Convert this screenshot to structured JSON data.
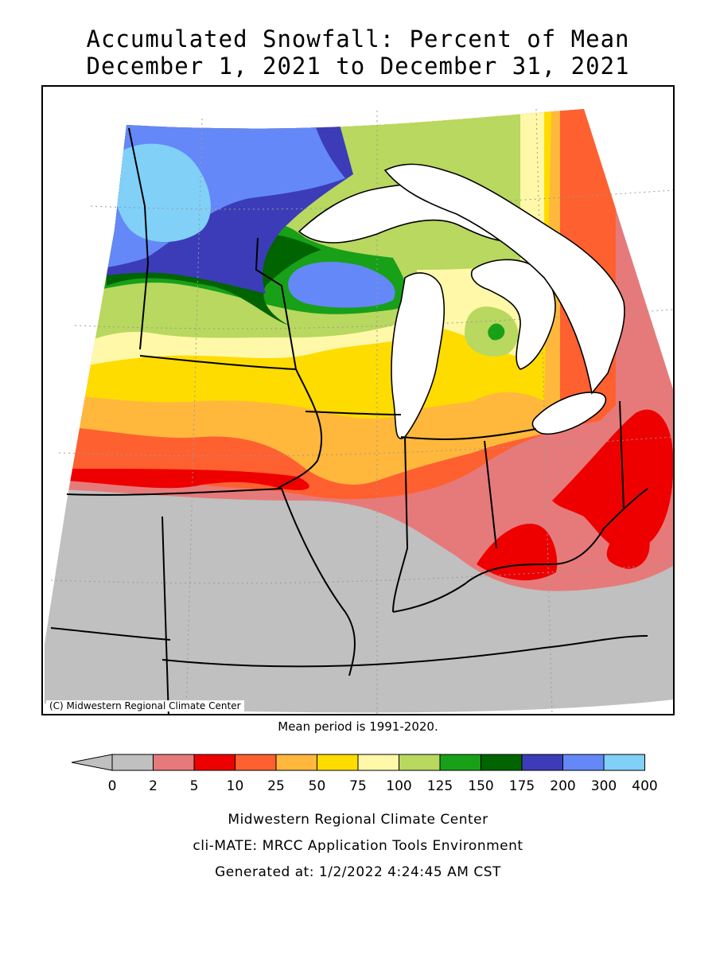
{
  "title": {
    "line1": "Accumulated Snowfall: Percent of Mean",
    "line2": "December 1, 2021 to December 31, 2021"
  },
  "copyright": "(C) Midwestern Regional Climate Center",
  "mean_period": "Mean period is 1991-2020.",
  "legend": {
    "bins": [
      {
        "low": "0",
        "high": "2",
        "color": "#c0c0c0"
      },
      {
        "low": "2",
        "high": "5",
        "color": "#e67a7a"
      },
      {
        "low": "5",
        "high": "10",
        "color": "#ee0000"
      },
      {
        "low": "10",
        "high": "25",
        "color": "#ff6030"
      },
      {
        "low": "25",
        "high": "50",
        "color": "#ffb83c"
      },
      {
        "low": "50",
        "high": "75",
        "color": "#ffdc00"
      },
      {
        "low": "75",
        "high": "100",
        "color": "#fff8a8"
      },
      {
        "low": "100",
        "high": "125",
        "color": "#b8d860"
      },
      {
        "low": "125",
        "high": "150",
        "color": "#18a018"
      },
      {
        "low": "150",
        "high": "175",
        "color": "#006400"
      },
      {
        "low": "175",
        "high": "200",
        "color": "#3c3cb8"
      },
      {
        "low": "200",
        "high": "300",
        "color": "#6488f8"
      },
      {
        "low": "300",
        "high": "400",
        "color": "#80d0f8"
      }
    ],
    "labels": [
      "0",
      "2",
      "5",
      "10",
      "25",
      "50",
      "75",
      "100",
      "125",
      "150",
      "175",
      "200",
      "300",
      "400"
    ],
    "arrow_color": "#c0c0c0"
  },
  "footer": {
    "line1": "Midwestern Regional Climate Center",
    "line2": "cli-MATE: MRCC Application Tools Environment",
    "line3": "Generated at: 1/2/2022 4:24:45 AM CST"
  },
  "map": {
    "colors": {
      "lake": "#ffffff",
      "outline": "#000000",
      "grid": "#9a9a9a"
    }
  }
}
